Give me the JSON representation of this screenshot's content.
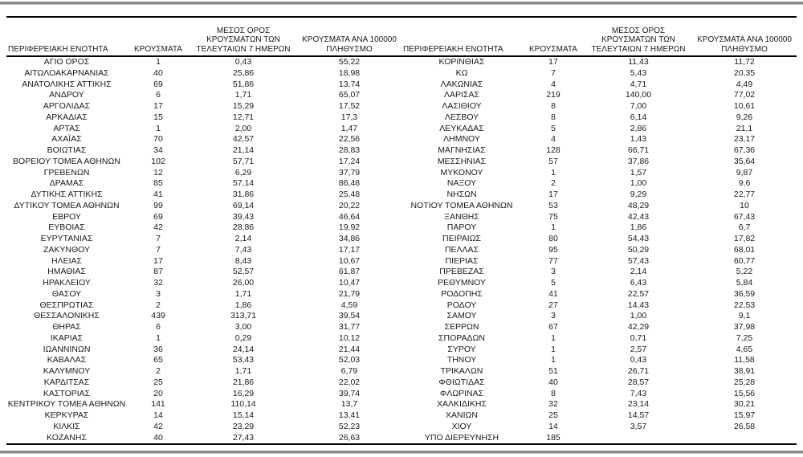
{
  "page": {
    "background": "#ffffff",
    "rule_color": "#8a8a8a",
    "table_line_color": "#000000",
    "text_color": "#1a1a1a"
  },
  "table": {
    "headers": {
      "region": "ΠΕΡΙΦΕΡΕΙΑΚΗ ΕΝΟΤΗΤΑ",
      "cases": "ΚΡΟΥΣΜΑΤΑ",
      "avg7days": "ΜΕΣΟΣ ΟΡΟΣ\nΚΡΟΥΣΜΑΤΩΝ ΤΩΝ\nΤΕΛΕΥΤΑΙΩΝ 7 ΗΜΕΡΩΝ",
      "per100k": "ΚΡΟΥΣΜΑΤΑ ΑΝΑ 100000\nΠΛΗΘΥΣΜΟ"
    },
    "left_rows": [
      [
        "ΑΓΙΟ ΟΡΟΣ",
        "1",
        "0,43",
        "55,22"
      ],
      [
        "ΑΙΤΩΛΟΑΚΑΡΝΑΝΙΑΣ",
        "40",
        "25,86",
        "18,98"
      ],
      [
        "ΑΝΑΤΟΛΙΚΗΣ ΑΤΤΙΚΗΣ",
        "69",
        "51,86",
        "13,74"
      ],
      [
        "ΑΝΔΡΟΥ",
        "6",
        "1,71",
        "65,07"
      ],
      [
        "ΑΡΓΟΛΙΔΑΣ",
        "17",
        "15,29",
        "17,52"
      ],
      [
        "ΑΡΚΑΔΙΑΣ",
        "15",
        "12,71",
        "17,3"
      ],
      [
        "ΑΡΤΑΣ",
        "1",
        "2,00",
        "1,47"
      ],
      [
        "ΑΧΑΪΑΣ",
        "70",
        "42,57",
        "22,56"
      ],
      [
        "ΒΟΙΩΤΙΑΣ",
        "34",
        "21,14",
        "28,83"
      ],
      [
        "ΒΟΡΕΙΟΥ ΤΟΜΕΑ ΑΘΗΝΩΝ",
        "102",
        "57,71",
        "17,24"
      ],
      [
        "ΓΡΕΒΕΝΩΝ",
        "12",
        "6,29",
        "37,79"
      ],
      [
        "ΔΡΑΜΑΣ",
        "85",
        "57,14",
        "86,48"
      ],
      [
        "ΔΥΤΙΚΗΣ ΑΤΤΙΚΗΣ",
        "41",
        "31,86",
        "25,48"
      ],
      [
        "ΔΥΤΙΚΟΥ ΤΟΜΕΑ ΑΘΗΝΩΝ",
        "99",
        "69,14",
        "20,22"
      ],
      [
        "ΕΒΡΟΥ",
        "69",
        "39,43",
        "46,64"
      ],
      [
        "ΕΥΒΟΙΑΣ",
        "42",
        "28,86",
        "19,92"
      ],
      [
        "ΕΥΡΥΤΑΝΙΑΣ",
        "7",
        "2,14",
        "34,86"
      ],
      [
        "ΖΑΚΥΝΘΟΥ",
        "7",
        "7,43",
        "17,17"
      ],
      [
        "ΗΛΕΙΑΣ",
        "17",
        "8,43",
        "10,67"
      ],
      [
        "ΗΜΑΘΙΑΣ",
        "87",
        "52,57",
        "61,87"
      ],
      [
        "ΗΡΑΚΛΕΙΟΥ",
        "32",
        "26,00",
        "10,47"
      ],
      [
        "ΘΑΣΟΥ",
        "3",
        "1,71",
        "21,79"
      ],
      [
        "ΘΕΣΠΡΩΤΙΑΣ",
        "2",
        "1,86",
        "4,59"
      ],
      [
        "ΘΕΣΣΑΛΟΝΙΚΗΣ",
        "439",
        "313,71",
        "39,54"
      ],
      [
        "ΘΗΡΑΣ",
        "6",
        "3,00",
        "31,77"
      ],
      [
        "ΙΚΑΡΙΑΣ",
        "1",
        "0,29",
        "10,12"
      ],
      [
        "ΙΩΑΝΝΙΝΩΝ",
        "36",
        "24,14",
        "21,44"
      ],
      [
        "ΚΑΒΑΛΑΣ",
        "65",
        "53,43",
        "52,03"
      ],
      [
        "ΚΑΛΥΜΝΟΥ",
        "2",
        "1,71",
        "6,79"
      ],
      [
        "ΚΑΡΔΙΤΣΑΣ",
        "25",
        "21,86",
        "22,02"
      ],
      [
        "ΚΑΣΤΟΡΙΑΣ",
        "20",
        "16,29",
        "39,74"
      ],
      [
        "ΚΕΝΤΡΙΚΟΥ ΤΟΜΕΑ ΑΘΗΝΩΝ",
        "141",
        "110,14",
        "13,7"
      ],
      [
        "ΚΕΡΚΥΡΑΣ",
        "14",
        "15,14",
        "13,41"
      ],
      [
        "ΚΙΛΚΙΣ",
        "42",
        "23,29",
        "52,23"
      ],
      [
        "ΚΟΖΑΝΗΣ",
        "40",
        "27,43",
        "26,63"
      ]
    ],
    "right_rows": [
      [
        "ΚΟΡΙΝΘΙΑΣ",
        "17",
        "11,43",
        "11,72"
      ],
      [
        "ΚΩ",
        "7",
        "5,43",
        "20,35"
      ],
      [
        "ΛΑΚΩΝΙΑΣ",
        "4",
        "4,71",
        "4,49"
      ],
      [
        "ΛΑΡΙΣΑΣ",
        "219",
        "140,00",
        "77,02"
      ],
      [
        "ΛΑΣΙΘΙΟΥ",
        "8",
        "7,00",
        "10,61"
      ],
      [
        "ΛΕΣΒΟΥ",
        "8",
        "6,14",
        "9,26"
      ],
      [
        "ΛΕΥΚΑΔΑΣ",
        "5",
        "2,86",
        "21,1"
      ],
      [
        "ΛΗΜΝΟΥ",
        "4",
        "1,43",
        "23,17"
      ],
      [
        "ΜΑΓΝΗΣΙΑΣ",
        "128",
        "66,71",
        "67,36"
      ],
      [
        "ΜΕΣΣΗΝΙΑΣ",
        "57",
        "37,86",
        "35,64"
      ],
      [
        "ΜΥΚΟΝΟΥ",
        "1",
        "1,57",
        "9,87"
      ],
      [
        "ΝΑΞΟΥ",
        "2",
        "1,00",
        "9,6"
      ],
      [
        "ΝΗΣΩΝ",
        "17",
        "9,29",
        "22,77"
      ],
      [
        "ΝΟΤΙΟΥ ΤΟΜΕΑ ΑΘΗΝΩΝ",
        "53",
        "48,29",
        "10"
      ],
      [
        "ΞΑΝΘΗΣ",
        "75",
        "42,43",
        "67,43"
      ],
      [
        "ΠΑΡΟΥ",
        "1",
        "1,86",
        "6,7"
      ],
      [
        "ΠΕΙΡΑΙΩΣ",
        "80",
        "54,43",
        "17,82"
      ],
      [
        "ΠΕΛΛΑΣ",
        "95",
        "50,29",
        "68,01"
      ],
      [
        "ΠΙΕΡΙΑΣ",
        "77",
        "57,43",
        "60,77"
      ],
      [
        "ΠΡΕΒΕΖΑΣ",
        "3",
        "2,14",
        "5,22"
      ],
      [
        "ΡΕΘΥΜΝΟΥ",
        "5",
        "6,43",
        "5,84"
      ],
      [
        "ΡΟΔΟΠΗΣ",
        "41",
        "22,57",
        "36,59"
      ],
      [
        "ΡΟΔΟΥ",
        "27",
        "14,43",
        "22,53"
      ],
      [
        "ΣΑΜΟΥ",
        "3",
        "1,00",
        "9,1"
      ],
      [
        "ΣΕΡΡΩΝ",
        "67",
        "42,29",
        "37,98"
      ],
      [
        "ΣΠΟΡΑΔΩΝ",
        "1",
        "0,71",
        "7,25"
      ],
      [
        "ΣΥΡΟΥ",
        "1",
        "2,57",
        "4,65"
      ],
      [
        "ΤΗΝΟΥ",
        "1",
        "0,43",
        "11,58"
      ],
      [
        "ΤΡΙΚΑΛΩΝ",
        "51",
        "26,71",
        "38,91"
      ],
      [
        "ΦΘΙΩΤΙΔΑΣ",
        "40",
        "28,57",
        "25,28"
      ],
      [
        "ΦΛΩΡΙΝΑΣ",
        "8",
        "7,43",
        "15,56"
      ],
      [
        "ΧΑΛΚΙΔΙΚΗΣ",
        "32",
        "23,14",
        "30,21"
      ],
      [
        "ΧΑΝΙΩΝ",
        "25",
        "14,57",
        "15,97"
      ],
      [
        "ΧΙΟΥ",
        "14",
        "3,57",
        "26,58"
      ],
      [
        "ΥΠΟ ΔΙΕΡΕΥΝΗΣΗ",
        "185",
        "",
        ""
      ]
    ]
  }
}
